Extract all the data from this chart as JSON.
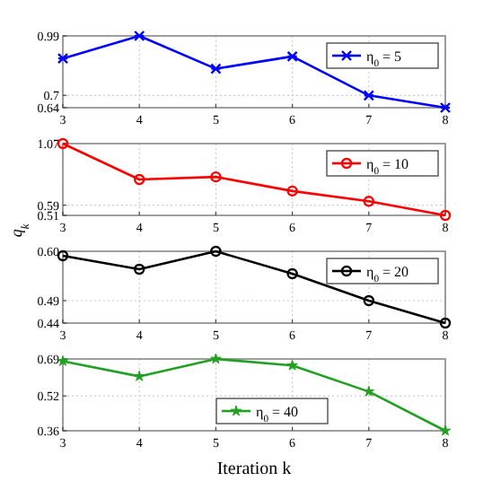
{
  "chart_data": [
    {
      "type": "line",
      "x": [
        3,
        4,
        5,
        6,
        7,
        8
      ],
      "xlim": [
        3,
        8
      ],
      "xticks": [
        3,
        4,
        5,
        6,
        7,
        8
      ],
      "ylim": [
        0.64,
        0.99
      ],
      "yticks": [
        0.64,
        0.7,
        0.99
      ],
      "grid": true,
      "legend": "top right",
      "marker": "cross",
      "series": [
        {
          "name": "η$_{0}$ = 5",
          "color": "#0000ff",
          "values": [
            0.88,
            0.99,
            0.83,
            0.89,
            0.7,
            0.64
          ]
        }
      ]
    },
    {
      "type": "line",
      "x": [
        3,
        4,
        5,
        6,
        7,
        8
      ],
      "xlim": [
        3,
        8
      ],
      "xticks": [
        3,
        4,
        5,
        6,
        7,
        8
      ],
      "ylim": [
        0.51,
        1.07
      ],
      "yticks": [
        0.51,
        0.59,
        1.07
      ],
      "grid": true,
      "legend": "top right",
      "marker": "circle",
      "ylabel": "q$_{k}$",
      "series": [
        {
          "name": "η$_{0}$ = 10",
          "color": "#ff0000",
          "values": [
            1.07,
            0.79,
            0.81,
            0.7,
            0.62,
            0.51
          ]
        }
      ]
    },
    {
      "type": "line",
      "x": [
        3,
        4,
        5,
        6,
        7,
        8
      ],
      "xlim": [
        3,
        8
      ],
      "xticks": [
        3,
        4,
        5,
        6,
        7,
        8
      ],
      "ylim": [
        0.44,
        0.6
      ],
      "yticks": [
        0.44,
        0.49,
        {
          "value": 0.6,
          "label": "0.60"
        }
      ],
      "grid": true,
      "legend": "top right",
      "marker": "circle",
      "series": [
        {
          "name": "η$_{0}$ = 20",
          "color": "#000000",
          "values": [
            0.59,
            0.56,
            0.6,
            0.55,
            0.49,
            0.44
          ]
        }
      ]
    },
    {
      "type": "line",
      "x": [
        3,
        4,
        5,
        6,
        7,
        8
      ],
      "xlim": [
        3,
        8
      ],
      "xticks": [
        3,
        4,
        5,
        6,
        7,
        8
      ],
      "ylim": [
        0.36,
        0.69
      ],
      "yticks": [
        0.36,
        0.52,
        0.69
      ],
      "grid": true,
      "legend": "bottom",
      "marker": "star",
      "xlabel": "Iteration k",
      "series": [
        {
          "name": "η$_{0}$ = 40",
          "color": "#22a022",
          "values": [
            0.68,
            0.61,
            0.69,
            0.66,
            0.54,
            0.36
          ]
        }
      ]
    }
  ]
}
